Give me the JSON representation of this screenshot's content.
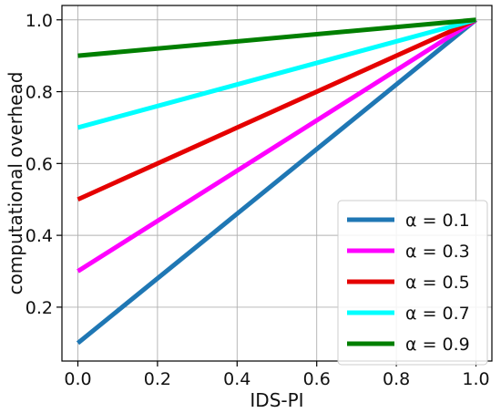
{
  "chart_data": {
    "type": "line",
    "title": "",
    "xlabel": "IDS-PI",
    "ylabel": "computational overhead",
    "xlim": [
      -0.04,
      1.04
    ],
    "ylim": [
      0.05,
      1.04
    ],
    "xticks": [
      0.0,
      0.2,
      0.4,
      0.6,
      0.8,
      1.0
    ],
    "yticks": [
      0.2,
      0.4,
      0.6,
      0.8,
      1.0
    ],
    "xtick_labels": [
      "0.0",
      "0.2",
      "0.4",
      "0.6",
      "0.8",
      "1.0"
    ],
    "ytick_labels": [
      "0.2",
      "0.4",
      "0.6",
      "0.8",
      "1.0"
    ],
    "grid": true,
    "legend_position": "lower-right",
    "series": [
      {
        "name": "α = 0.1",
        "color": "#1f77b4",
        "x": [
          0.0,
          1.0
        ],
        "y": [
          0.1,
          1.0
        ]
      },
      {
        "name": "α = 0.3",
        "color": "#ff00ff",
        "x": [
          0.0,
          1.0
        ],
        "y": [
          0.3,
          1.0
        ]
      },
      {
        "name": "α = 0.5",
        "color": "#e50000",
        "x": [
          0.0,
          1.0
        ],
        "y": [
          0.5,
          1.0
        ]
      },
      {
        "name": "α = 0.7",
        "color": "#00ffff",
        "x": [
          0.0,
          1.0
        ],
        "y": [
          0.7,
          1.0
        ]
      },
      {
        "name": "α = 0.9",
        "color": "#007f00",
        "x": [
          0.0,
          1.0
        ],
        "y": [
          0.9,
          1.0
        ]
      }
    ]
  }
}
